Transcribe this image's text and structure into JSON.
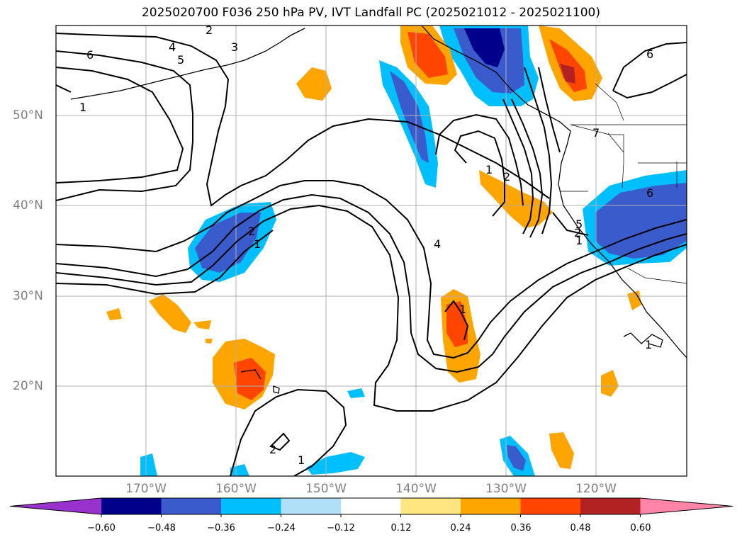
{
  "title": "2025020700 F036 250 hPa PV, IVT Landfall PC (2025021012 - 2025021100)",
  "lat_labels": [
    "50°N",
    "40°N",
    "30°N",
    "20°N"
  ],
  "lon_labels": [
    "170°W",
    "160°W",
    "150°W",
    "140°W",
    "130°W",
    "120°W"
  ],
  "colorbar": {
    "ticks": [
      "−0.60",
      "−0.48",
      "−0.36",
      "−0.24",
      "−0.12",
      "0.12",
      "0.24",
      "0.36",
      "0.48",
      "0.60"
    ],
    "colors": [
      "#9932cc",
      "#00008b",
      "#3a5bcc",
      "#00bfff",
      "#b0e0f8",
      "#ffffff",
      "#ffe680",
      "#ffa500",
      "#ff4500",
      "#b22222",
      "#ff85a8"
    ]
  },
  "contour_labels": [
    "2",
    "3",
    "4",
    "5",
    "6",
    "1",
    "1",
    "2",
    "7",
    "6",
    "2",
    "1",
    "4",
    "1",
    "2",
    "5",
    "1",
    "2",
    "1",
    "6"
  ]
}
